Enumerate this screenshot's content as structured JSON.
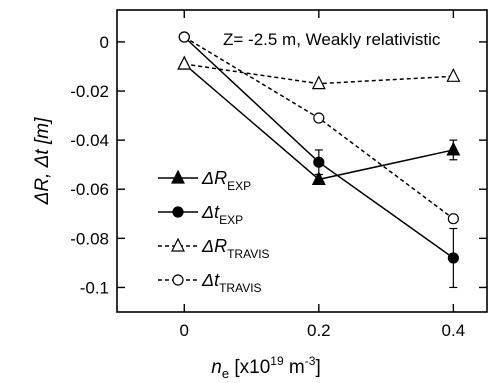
{
  "chart_data": {
    "type": "line",
    "annotation": "Z= -2.5 m, Weakly relativistic",
    "xlabel": {
      "main": "n",
      "sub": "e",
      "rest": " [x10",
      "sup": "19",
      "unit": " m",
      "unit_sup": "-3",
      "close": "]"
    },
    "ylabel": "ΔR, Δt [m]",
    "xlim": [
      -0.1,
      0.45
    ],
    "ylim": [
      -0.11,
      0.013
    ],
    "x_ticks": [
      0,
      0.2,
      0.4
    ],
    "x_tick_labels": [
      "0",
      "0.2",
      "0.4"
    ],
    "y_ticks": [
      0,
      -0.02,
      -0.04,
      -0.06,
      -0.08,
      -0.1
    ],
    "y_tick_labels": [
      "0",
      "-0.02",
      "-0.04",
      "-0.06",
      "-0.08",
      "-0.1"
    ],
    "x": [
      0,
      0.2,
      0.4
    ],
    "series": [
      {
        "name": "ΔR",
        "sub": "EXP",
        "values": [
          -0.009,
          -0.056,
          -0.044
        ],
        "errors": [
          0,
          0.002,
          0.004
        ],
        "marker": "filled-triangle",
        "line": "solid",
        "color": "#000000"
      },
      {
        "name": "Δt",
        "sub": "EXP",
        "values": [
          0.002,
          -0.049,
          -0.088
        ],
        "errors": [
          0,
          0.005,
          0.012
        ],
        "marker": "filled-circle",
        "line": "solid",
        "color": "#000000"
      },
      {
        "name": "ΔR",
        "sub": "TRAVIS",
        "values": [
          -0.009,
          -0.017,
          -0.014
        ],
        "errors": [
          0,
          0,
          0
        ],
        "marker": "open-triangle",
        "line": "dashed",
        "color": "#000000"
      },
      {
        "name": "Δt",
        "sub": "TRAVIS",
        "values": [
          0.002,
          -0.031,
          -0.072
        ],
        "errors": [
          0,
          0,
          0
        ],
        "marker": "open-circle",
        "line": "dashed",
        "color": "#000000"
      }
    ],
    "legend_position": "lower-left"
  }
}
